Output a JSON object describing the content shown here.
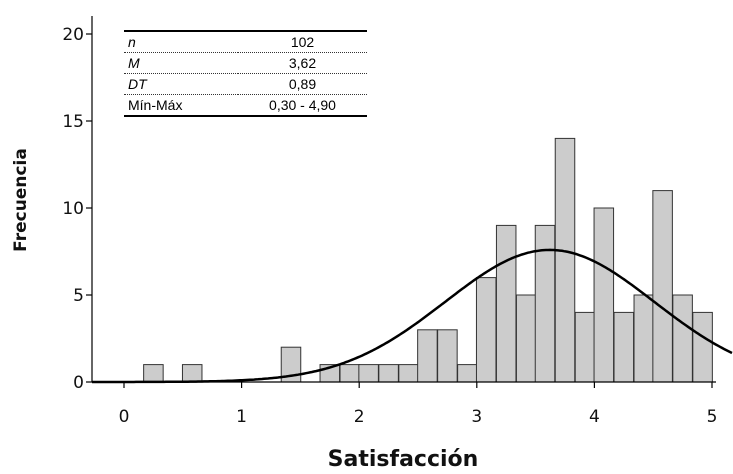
{
  "chart_data": {
    "type": "bar",
    "xlabel": "Satisfacción",
    "ylabel": "Frecuencia",
    "xlim": [
      -0.3,
      5.05
    ],
    "ylim": [
      0,
      20.5
    ],
    "x_ticks": [
      "0",
      "1",
      "2",
      "3",
      "4",
      "5"
    ],
    "y_ticks": [
      "0",
      "5",
      "10",
      "15",
      "20"
    ],
    "grid": false,
    "bin_width": 0.166,
    "bins": [
      {
        "x": 0.25,
        "count": 1
      },
      {
        "x": 0.58,
        "count": 1
      },
      {
        "x": 1.42,
        "count": 2
      },
      {
        "x": 1.75,
        "count": 1
      },
      {
        "x": 1.92,
        "count": 1
      },
      {
        "x": 2.08,
        "count": 1
      },
      {
        "x": 2.25,
        "count": 1
      },
      {
        "x": 2.42,
        "count": 1
      },
      {
        "x": 2.58,
        "count": 3
      },
      {
        "x": 2.75,
        "count": 3
      },
      {
        "x": 2.92,
        "count": 1
      },
      {
        "x": 3.08,
        "count": 6
      },
      {
        "x": 3.25,
        "count": 9
      },
      {
        "x": 3.42,
        "count": 5
      },
      {
        "x": 3.58,
        "count": 9
      },
      {
        "x": 3.75,
        "count": 14
      },
      {
        "x": 3.92,
        "count": 4
      },
      {
        "x": 4.08,
        "count": 10
      },
      {
        "x": 4.25,
        "count": 4
      },
      {
        "x": 4.42,
        "count": 5
      },
      {
        "x": 4.58,
        "count": 11
      },
      {
        "x": 4.75,
        "count": 5
      },
      {
        "x": 4.92,
        "count": 4
      }
    ],
    "normal_curve": {
      "mean": 3.62,
      "sd": 0.89,
      "n": 102
    },
    "colors": {
      "bar_fill": "#cccccc",
      "bar_stroke": "#333333",
      "curve": "#000000"
    }
  },
  "stats_table": [
    {
      "label": "n",
      "value": "102",
      "italic": true
    },
    {
      "label": "M",
      "value": "3,62",
      "italic": true
    },
    {
      "label": "DT",
      "value": "0,89",
      "italic": true
    },
    {
      "label": "Mín-Máx",
      "value": "0,30 - 4,90",
      "italic": false
    }
  ]
}
